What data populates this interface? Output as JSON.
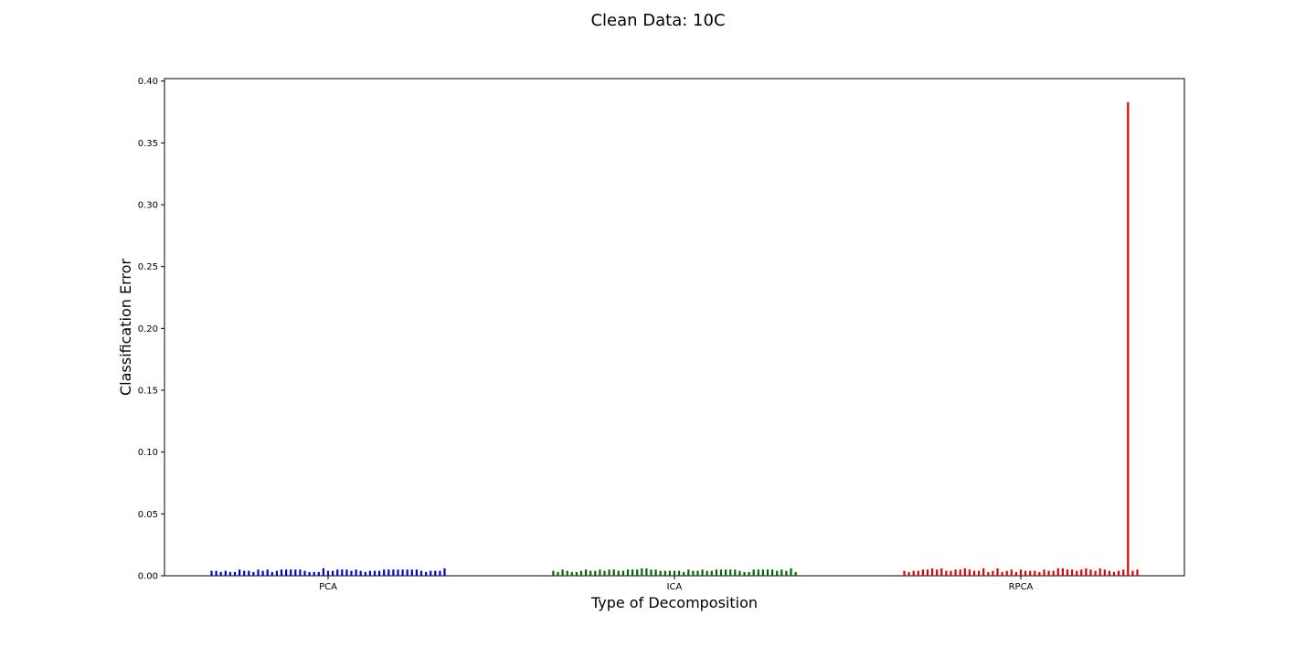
{
  "chart_data": {
    "type": "bar",
    "title": "Clean Data: 10C",
    "xlabel": "Type of Decomposition",
    "ylabel": "Classification Error",
    "ylim": [
      0,
      0.402
    ],
    "yticks": [
      "0.00",
      "0.05",
      "0.10",
      "0.15",
      "0.20",
      "0.25",
      "0.30",
      "0.35",
      "0.40"
    ],
    "grid": false,
    "legend": "none",
    "groups": [
      {
        "label": "PCA",
        "color": "#0000cc",
        "values": [
          0.004,
          0.004,
          0.003,
          0.004,
          0.003,
          0.003,
          0.005,
          0.004,
          0.004,
          0.003,
          0.005,
          0.004,
          0.005,
          0.003,
          0.004,
          0.005,
          0.005,
          0.005,
          0.005,
          0.005,
          0.004,
          0.003,
          0.003,
          0.003,
          0.006,
          0.004,
          0.004,
          0.005,
          0.005,
          0.005,
          0.004,
          0.005,
          0.004,
          0.003,
          0.004,
          0.004,
          0.004,
          0.005,
          0.005,
          0.005,
          0.005,
          0.005,
          0.005,
          0.005,
          0.005,
          0.004,
          0.003,
          0.004,
          0.004,
          0.004,
          0.006
        ]
      },
      {
        "label": "ICA",
        "color": "#006600",
        "values": [
          0.004,
          0.003,
          0.005,
          0.004,
          0.003,
          0.003,
          0.004,
          0.005,
          0.004,
          0.004,
          0.005,
          0.004,
          0.005,
          0.005,
          0.004,
          0.004,
          0.005,
          0.005,
          0.005,
          0.006,
          0.006,
          0.005,
          0.005,
          0.004,
          0.004,
          0.004,
          0.004,
          0.004,
          0.003,
          0.005,
          0.004,
          0.004,
          0.005,
          0.004,
          0.004,
          0.005,
          0.005,
          0.005,
          0.005,
          0.005,
          0.004,
          0.003,
          0.003,
          0.005,
          0.005,
          0.005,
          0.005,
          0.005,
          0.004,
          0.005,
          0.004,
          0.006,
          0.003
        ]
      },
      {
        "label": "RPCA",
        "color": "#dd0000",
        "values": [
          0.004,
          0.003,
          0.004,
          0.004,
          0.005,
          0.005,
          0.006,
          0.005,
          0.006,
          0.004,
          0.004,
          0.005,
          0.005,
          0.006,
          0.005,
          0.004,
          0.004,
          0.006,
          0.003,
          0.004,
          0.006,
          0.003,
          0.004,
          0.005,
          0.003,
          0.005,
          0.004,
          0.004,
          0.004,
          0.003,
          0.005,
          0.004,
          0.004,
          0.006,
          0.006,
          0.005,
          0.005,
          0.004,
          0.005,
          0.006,
          0.005,
          0.004,
          0.006,
          0.005,
          0.004,
          0.003,
          0.004,
          0.005,
          0.383,
          0.004,
          0.005
        ]
      }
    ]
  }
}
